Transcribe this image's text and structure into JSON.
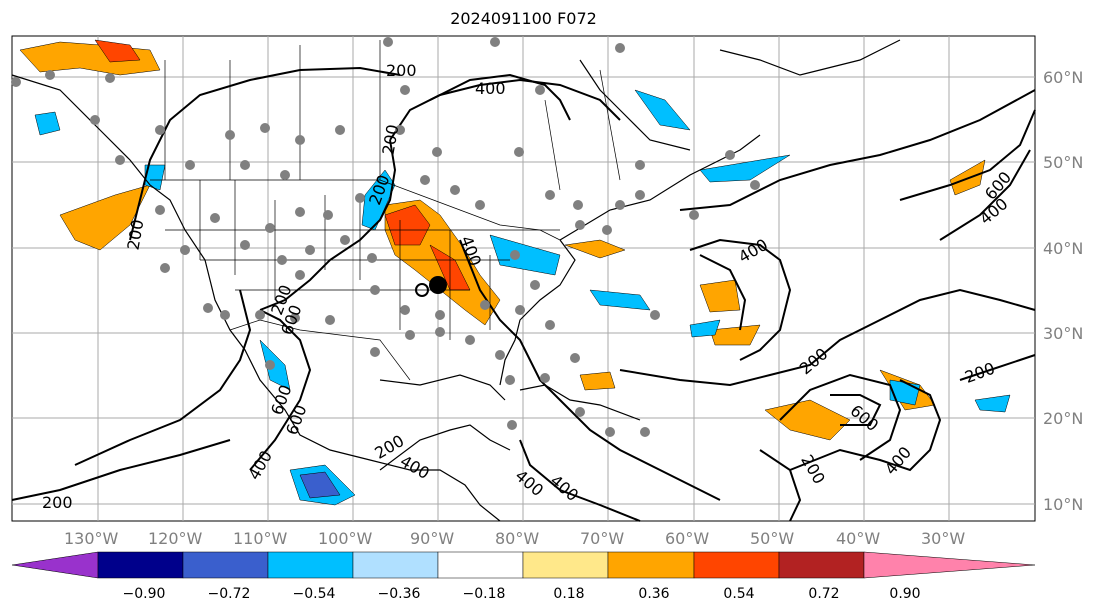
{
  "title": "2024091100 F072",
  "lon_labels": [
    "130°W",
    "120°W",
    "110°W",
    "100°W",
    "90°W",
    "80°W",
    "70°W",
    "60°W",
    "50°W",
    "40°W",
    "30°W"
  ],
  "lat_labels": [
    "60°N",
    "50°N",
    "40°N",
    "30°N",
    "20°N",
    "10°N"
  ],
  "contour_labels": [
    "200",
    "400",
    "200",
    "200",
    "400",
    "400",
    "400",
    "200",
    "400",
    "200",
    "600",
    "400",
    "600",
    "400",
    "600",
    "200",
    "200",
    "600",
    "400",
    "200",
    "200",
    "200",
    "600",
    "400"
  ],
  "colorbar": {
    "tick_labels": [
      "−0.90",
      "−0.72",
      "−0.54",
      "−0.36",
      "−0.18",
      "0.18",
      "0.36",
      "0.54",
      "0.72",
      "0.90"
    ],
    "colors": [
      "#9932cc",
      "#00008b",
      "#3a5fcd",
      "#00bfff",
      "#b0e0ff",
      "#ffffff",
      "#ffe88a",
      "#ffa500",
      "#ff4500",
      "#b22222",
      "#ff82ab"
    ]
  },
  "legend_colors": {
    "positive": "#ffa500",
    "strong_positive": "#ff4500",
    "negative": "#00bfff",
    "strong_negative": "#3a5fcd",
    "station_dots": "#808080",
    "marker": "#000000"
  }
}
